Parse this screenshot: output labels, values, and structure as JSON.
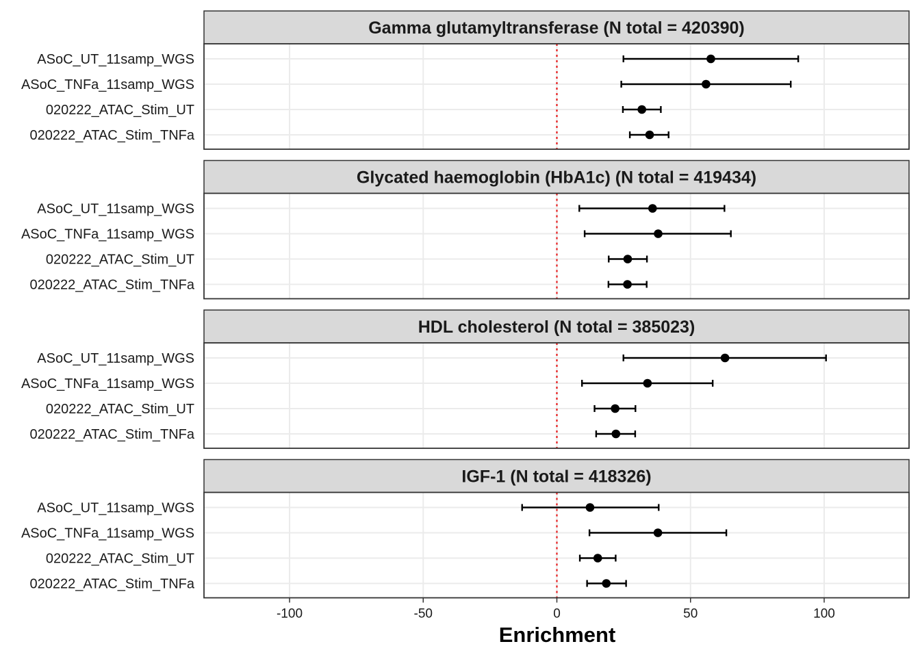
{
  "chart_data": {
    "type": "forest",
    "xlabel": "Enrichment",
    "xlim": [
      -130,
      130
    ],
    "xticks": [
      -100,
      -50,
      0,
      50,
      100
    ],
    "xtick_labels": [
      "-100",
      "-50",
      "0",
      "50",
      "100"
    ],
    "reference_line": 0,
    "grid": true,
    "categories": [
      "ASoC_UT_11samp_WGS",
      "ASoC_TNFa_11samp_WGS",
      "020222_ATAC_Stim_UT",
      "020222_ATAC_Stim_TNFa"
    ],
    "panels": [
      {
        "title": "Gamma glutamyltransferase (N total = 420390)",
        "points": [
          {
            "category": "ASoC_UT_11samp_WGS",
            "estimate": 57.6,
            "lower": 24.9,
            "upper": 90.3
          },
          {
            "category": "ASoC_TNFa_11samp_WGS",
            "estimate": 55.8,
            "lower": 24.1,
            "upper": 87.5
          },
          {
            "category": "020222_ATAC_Stim_UT",
            "estimate": 31.8,
            "lower": 24.7,
            "upper": 38.9
          },
          {
            "category": "020222_ATAC_Stim_TNFa",
            "estimate": 34.7,
            "lower": 27.3,
            "upper": 41.8
          }
        ]
      },
      {
        "title": "Glycated haemoglobin (HbA1c) (N total = 419434)",
        "points": [
          {
            "category": "ASoC_UT_11samp_WGS",
            "estimate": 35.8,
            "lower": 8.4,
            "upper": 62.7
          },
          {
            "category": "ASoC_TNFa_11samp_WGS",
            "estimate": 37.9,
            "lower": 10.4,
            "upper": 65.1
          },
          {
            "category": "020222_ATAC_Stim_UT",
            "estimate": 26.5,
            "lower": 19.4,
            "upper": 33.7
          },
          {
            "category": "020222_ATAC_Stim_TNFa",
            "estimate": 26.4,
            "lower": 19.3,
            "upper": 33.6
          }
        ]
      },
      {
        "title": "HDL cholesterol (N total = 385023)",
        "points": [
          {
            "category": "ASoC_UT_11samp_WGS",
            "estimate": 62.9,
            "lower": 24.9,
            "upper": 100.7
          },
          {
            "category": "ASoC_TNFa_11samp_WGS",
            "estimate": 33.9,
            "lower": 9.4,
            "upper": 58.3
          },
          {
            "category": "020222_ATAC_Stim_UT",
            "estimate": 21.8,
            "lower": 14.1,
            "upper": 29.4
          },
          {
            "category": "020222_ATAC_Stim_TNFa",
            "estimate": 22.1,
            "lower": 14.7,
            "upper": 29.3
          }
        ]
      },
      {
        "title": "IGF-1 (N total = 418326)",
        "points": [
          {
            "category": "ASoC_UT_11samp_WGS",
            "estimate": 12.4,
            "lower": -13.0,
            "upper": 38.1
          },
          {
            "category": "ASoC_TNFa_11samp_WGS",
            "estimate": 37.8,
            "lower": 12.2,
            "upper": 63.4
          },
          {
            "category": "020222_ATAC_Stim_UT",
            "estimate": 15.3,
            "lower": 8.6,
            "upper": 22.0
          },
          {
            "category": "020222_ATAC_Stim_TNFa",
            "estimate": 18.5,
            "lower": 11.3,
            "upper": 25.9
          }
        ]
      }
    ]
  },
  "colors": {
    "point": "#000000",
    "reference_line": "#e41a1c",
    "strip_fill": "#d9d9d9",
    "panel_border": "#333333",
    "grid": "#ebebeb"
  }
}
